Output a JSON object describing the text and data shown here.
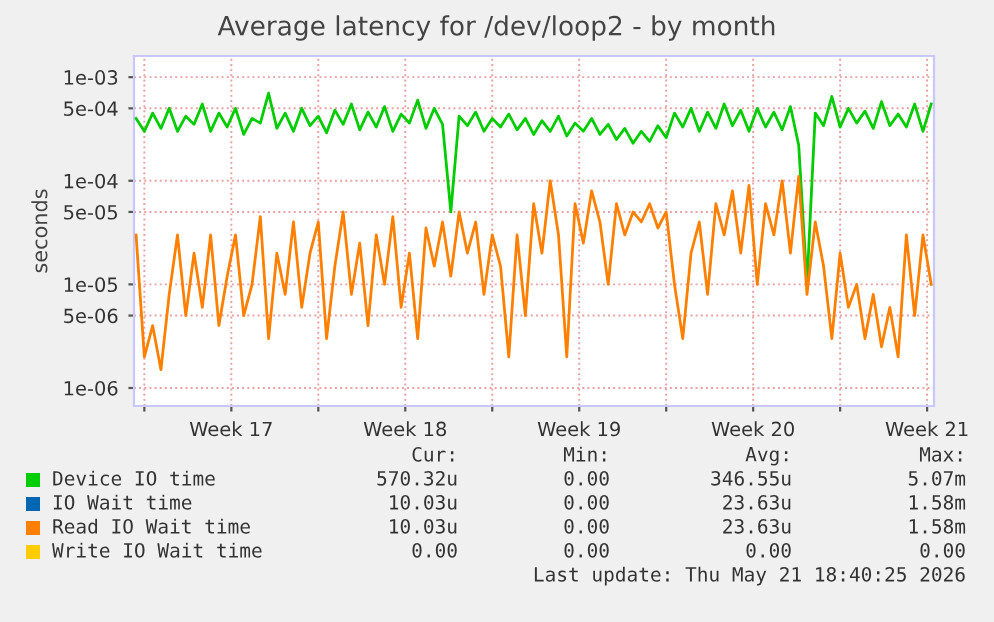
{
  "chart_data": {
    "type": "line",
    "title": "Average latency for /dev/loop2 - by month",
    "ylabel": "seconds",
    "log": "y",
    "x": [
      "2026-04-19T16:00",
      "2026-04-20T00:00",
      "2026-04-20T08:00",
      "2026-04-20T16:00",
      "2026-04-21T00:00",
      "2026-04-21T08:00",
      "2026-04-21T16:00",
      "2026-04-22T00:00",
      "2026-04-22T08:00",
      "2026-04-22T16:00",
      "2026-04-23T00:00",
      "2026-04-23T08:00",
      "2026-04-23T16:00",
      "2026-04-24T00:00",
      "2026-04-24T08:00",
      "2026-04-24T16:00",
      "2026-04-25T00:00",
      "2026-04-25T08:00",
      "2026-04-25T16:00",
      "2026-04-26T00:00",
      "2026-04-26T08:00",
      "2026-04-26T16:00",
      "2026-04-27T00:00",
      "2026-04-27T08:00",
      "2026-04-27T16:00",
      "2026-04-28T00:00",
      "2026-04-28T08:00",
      "2026-04-28T16:00",
      "2026-04-29T00:00",
      "2026-04-29T08:00",
      "2026-04-29T16:00",
      "2026-04-30T00:00",
      "2026-04-30T08:00",
      "2026-04-30T16:00",
      "2026-05-01T00:00",
      "2026-05-01T08:00",
      "2026-05-01T16:00",
      "2026-05-02T00:00",
      "2026-05-02T08:00",
      "2026-05-02T16:00",
      "2026-05-03T00:00",
      "2026-05-03T08:00",
      "2026-05-03T16:00",
      "2026-05-04T00:00",
      "2026-05-04T08:00",
      "2026-05-04T16:00",
      "2026-05-05T00:00",
      "2026-05-05T08:00",
      "2026-05-05T16:00",
      "2026-05-06T00:00",
      "2026-05-06T08:00",
      "2026-05-06T16:00",
      "2026-05-07T00:00",
      "2026-05-07T08:00",
      "2026-05-07T16:00",
      "2026-05-08T00:00",
      "2026-05-08T08:00",
      "2026-05-08T16:00",
      "2026-05-09T00:00",
      "2026-05-09T08:00",
      "2026-05-09T16:00",
      "2026-05-10T00:00",
      "2026-05-10T08:00",
      "2026-05-10T16:00",
      "2026-05-11T00:00",
      "2026-05-11T08:00",
      "2026-05-11T16:00",
      "2026-05-12T00:00",
      "2026-05-12T08:00",
      "2026-05-12T16:00",
      "2026-05-13T00:00",
      "2026-05-13T08:00",
      "2026-05-13T16:00",
      "2026-05-14T00:00",
      "2026-05-14T08:00",
      "2026-05-14T16:00",
      "2026-05-15T00:00",
      "2026-05-15T08:00",
      "2026-05-15T16:00",
      "2026-05-16T00:00",
      "2026-05-16T08:00",
      "2026-05-16T16:00",
      "2026-05-17T00:00",
      "2026-05-17T08:00",
      "2026-05-17T16:00",
      "2026-05-18T00:00",
      "2026-05-18T08:00",
      "2026-05-18T16:00",
      "2026-05-19T00:00",
      "2026-05-19T08:00",
      "2026-05-19T16:00",
      "2026-05-20T00:00",
      "2026-05-20T08:00",
      "2026-05-20T16:00",
      "2026-05-21T00:00",
      "2026-05-21T08:00",
      "2026-05-21T16:00"
    ],
    "xlim": [
      "2026-04-19T14:00",
      "2026-05-21T18:40"
    ],
    "xticks": [
      {
        "value": "2026-04-20",
        "label": null
      },
      {
        "value": "2026-04-23T12:00",
        "label": "Week 17"
      },
      {
        "value": "2026-04-27",
        "label": null
      },
      {
        "value": "2026-04-30T12:00",
        "label": "Week 18"
      },
      {
        "value": "2026-05-04",
        "label": null
      },
      {
        "value": "2026-05-07T12:00",
        "label": "Week 19"
      },
      {
        "value": "2026-05-11",
        "label": null
      },
      {
        "value": "2026-05-14T12:00",
        "label": "Week 20"
      },
      {
        "value": "2026-05-18",
        "label": null
      },
      {
        "value": "2026-05-21T12:00",
        "label": "Week 21"
      }
    ],
    "ylim": [
      6.7e-07,
      0.0016
    ],
    "yticks": [
      {
        "value": 1e-06,
        "label": "1e-06"
      },
      {
        "value": 5e-06,
        "label": "5e-06"
      },
      {
        "value": 1e-05,
        "label": "1e-05"
      },
      {
        "value": 5e-05,
        "label": "5e-05"
      },
      {
        "value": 0.0001,
        "label": "1e-04"
      },
      {
        "value": 0.0005,
        "label": "5e-04"
      },
      {
        "value": 0.001,
        "label": "1e-03"
      }
    ],
    "grid": true,
    "legend": "bottom",
    "marker": "none",
    "line_style": "solid",
    "series": [
      {
        "name": "Device IO time",
        "color": "#00cc00",
        "values": [
          0.0004,
          0.0003,
          0.00045,
          0.00032,
          0.0005,
          0.0003,
          0.00042,
          0.00035,
          0.00055,
          0.0003,
          0.00045,
          0.00033,
          0.0005,
          0.00028,
          0.0004,
          0.00036,
          0.0007,
          0.00032,
          0.00045,
          0.0003,
          0.0005,
          0.00034,
          0.00042,
          0.00029,
          0.00048,
          0.00035,
          0.00055,
          0.00031,
          0.00046,
          0.00033,
          0.00052,
          0.0003,
          0.00044,
          0.00036,
          0.0006,
          0.00032,
          0.0005,
          0.00035,
          5e-05,
          0.00042,
          0.00034,
          0.00046,
          0.0003,
          0.0004,
          0.00033,
          0.00044,
          0.00031,
          0.0004,
          0.00028,
          0.00038,
          0.0003,
          0.00042,
          0.00027,
          0.00036,
          0.0003,
          0.0004,
          0.00028,
          0.00035,
          0.00025,
          0.00032,
          0.00023,
          0.0003,
          0.00024,
          0.00034,
          0.00026,
          0.00045,
          0.00033,
          0.0005,
          0.0003,
          0.00046,
          0.00032,
          0.00055,
          0.00034,
          0.00048,
          0.0003,
          0.0005,
          0.00033,
          0.00046,
          0.00031,
          0.00052,
          0.00022,
          1e-05,
          0.00045,
          0.00034,
          0.00065,
          0.00033,
          0.0005,
          0.00036,
          0.00047,
          0.00032,
          0.00058,
          0.00034,
          0.00044,
          0.00033,
          0.00055,
          0.0003,
          0.00055
        ]
      },
      {
        "name": "IO Wait time",
        "color": "#0066b3",
        "values": [
          null,
          null,
          null,
          null,
          null,
          null,
          null,
          null,
          null,
          null,
          null,
          null,
          null,
          null,
          null,
          null,
          null,
          null,
          null,
          null,
          null,
          null,
          null,
          null,
          null,
          null,
          null,
          null,
          null,
          null,
          null,
          null,
          null,
          null,
          null,
          null,
          null,
          null,
          null,
          null,
          null,
          null,
          null,
          null,
          null,
          null,
          null,
          null,
          null,
          null,
          null,
          null,
          null,
          null,
          null,
          null,
          null,
          null,
          null,
          null,
          null,
          null,
          null,
          null,
          null,
          null,
          null,
          null,
          null,
          null,
          null,
          null,
          null,
          null,
          null,
          null,
          null,
          null,
          null,
          null,
          null,
          null,
          null,
          null,
          null,
          null,
          null,
          null,
          null,
          null,
          null,
          null,
          null,
          null,
          null,
          null,
          null
        ]
      },
      {
        "name": "Read IO Wait time",
        "color": "#ff8000",
        "values": [
          3e-05,
          2e-06,
          4e-06,
          1.5e-06,
          8e-06,
          3e-05,
          5e-06,
          2e-05,
          6e-06,
          3e-05,
          4e-06,
          1.2e-05,
          3e-05,
          5e-06,
          1e-05,
          4.5e-05,
          3e-06,
          2e-05,
          8e-06,
          4e-05,
          6e-06,
          2e-05,
          4e-05,
          3e-06,
          1.5e-05,
          5e-05,
          8e-06,
          2.5e-05,
          4e-06,
          3e-05,
          1e-05,
          4.5e-05,
          6e-06,
          2e-05,
          3e-06,
          3.5e-05,
          1.5e-05,
          4e-05,
          1.2e-05,
          5e-05,
          2e-05,
          4e-05,
          8e-06,
          3e-05,
          1.5e-05,
          2e-06,
          3e-05,
          5e-06,
          6e-05,
          2e-05,
          0.0001,
          3e-05,
          2e-06,
          6e-05,
          2.5e-05,
          8e-05,
          4e-05,
          1e-05,
          6e-05,
          3e-05,
          5e-05,
          4e-05,
          6e-05,
          3.5e-05,
          5e-05,
          1e-05,
          3e-06,
          2e-05,
          4e-05,
          8e-06,
          6e-05,
          3e-05,
          8e-05,
          2e-05,
          9e-05,
          1e-05,
          6e-05,
          3e-05,
          0.0001,
          2e-05,
          0.00011,
          8e-06,
          4e-05,
          1.5e-05,
          3e-06,
          2e-05,
          6e-06,
          1e-05,
          3e-06,
          8e-06,
          2.5e-06,
          6e-06,
          2e-06,
          3e-05,
          5e-06,
          3e-05,
          1e-05
        ]
      },
      {
        "name": "Write IO Wait time",
        "color": "#ffcc00",
        "values": [
          null,
          null,
          null,
          null,
          null,
          null,
          null,
          null,
          null,
          null,
          null,
          null,
          null,
          null,
          null,
          null,
          null,
          null,
          null,
          null,
          null,
          null,
          null,
          null,
          null,
          null,
          null,
          null,
          null,
          null,
          null,
          null,
          null,
          null,
          null,
          null,
          null,
          null,
          null,
          null,
          null,
          null,
          null,
          null,
          null,
          null,
          null,
          null,
          null,
          null,
          null,
          null,
          null,
          null,
          null,
          null,
          null,
          null,
          null,
          null,
          null,
          null,
          null,
          null,
          null,
          null,
          null,
          null,
          null,
          null,
          null,
          null,
          null,
          null,
          null,
          null,
          null,
          null,
          null,
          null,
          null,
          null,
          null,
          null,
          null,
          null,
          null,
          null,
          null,
          null,
          null,
          null,
          null,
          null,
          null,
          null,
          null
        ]
      }
    ],
    "annotations": [
      "Cur:",
      "Min:",
      "Avg:",
      "Max:",
      "570.32u",
      "0.00",
      "346.55u",
      "5.07m",
      "10.03u",
      "0.00",
      "23.63u",
      "1.58m",
      "10.03u",
      "0.00",
      "23.63u",
      "1.58m",
      "0.00",
      "0.00",
      "0.00",
      "0.00",
      "Last update: Thu May 21 18:40:25 2026"
    ]
  }
}
